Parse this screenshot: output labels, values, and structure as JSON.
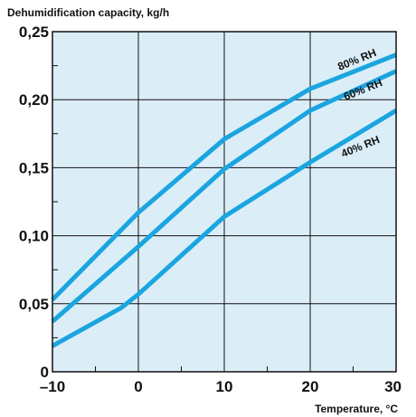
{
  "chart_data": {
    "type": "line",
    "ylabel": "Dehumidification capacity, kg/h",
    "xlabel": "Temperature, °C",
    "xlim": [
      -10,
      30
    ],
    "ylim": [
      0,
      0.25
    ],
    "x_ticks": [
      -10,
      0,
      10,
      20,
      30
    ],
    "x_tick_labels": [
      "–10",
      "0",
      "10",
      "20",
      "30"
    ],
    "y_ticks": [
      0,
      0.05,
      0.1,
      0.15,
      0.2,
      0.25
    ],
    "y_tick_labels": [
      "0",
      "0,05",
      "0,10",
      "0,15",
      "0,20",
      "0,25"
    ],
    "grid": true,
    "colors": {
      "plot_background": "#dbeef8",
      "line": "#1ba5e0",
      "grid": "#111111"
    },
    "series": [
      {
        "name": "80% RH",
        "x": [
          -10,
          0,
          10,
          20,
          30
        ],
        "values": [
          0.053,
          0.117,
          0.171,
          0.208,
          0.233
        ]
      },
      {
        "name": "60% RH",
        "x": [
          -10,
          0,
          10,
          20,
          30
        ],
        "values": [
          0.037,
          0.092,
          0.149,
          0.192,
          0.221
        ]
      },
      {
        "name": "40% RH",
        "x": [
          -10,
          -2,
          0,
          10,
          20,
          30
        ],
        "values": [
          0.019,
          0.047,
          0.057,
          0.114,
          0.154,
          0.192
        ]
      }
    ]
  }
}
